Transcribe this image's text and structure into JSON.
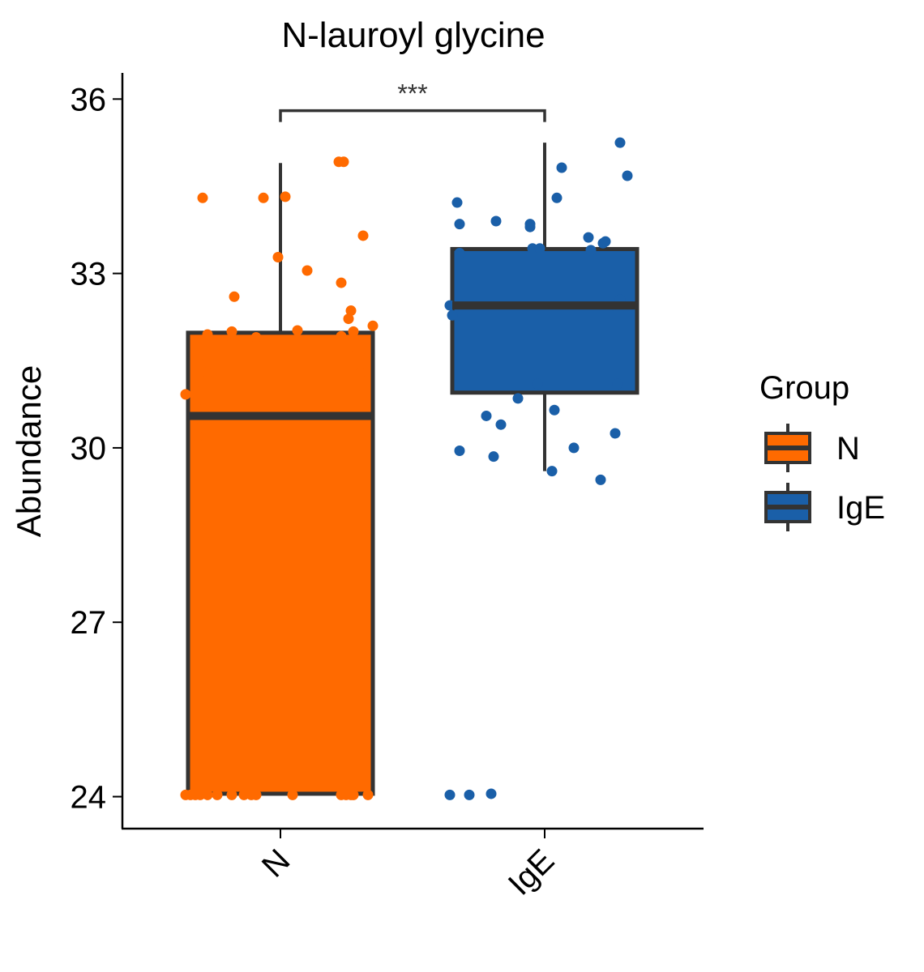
{
  "chart_data": {
    "type": "boxplot",
    "title": "N-lauroyl glycine",
    "xlabel": "",
    "ylabel": "Abundance",
    "ylim": [
      23.45,
      36.45
    ],
    "yticks": [
      24,
      27,
      30,
      33,
      36
    ],
    "ytick_labels": [
      "24",
      "27",
      "30",
      "33",
      "36"
    ],
    "categories": [
      "N",
      "IgE"
    ],
    "legend": {
      "title": "Group",
      "placement": "right",
      "entries": [
        "N",
        "IgE"
      ]
    },
    "significance": {
      "label": "***",
      "between": [
        "N",
        "IgE"
      ],
      "y": 35.8
    },
    "series": [
      {
        "name": "N",
        "color": "#FF6A00",
        "box": {
          "whisker_low": 24.05,
          "q1": 24.05,
          "median": 30.55,
          "q3": 31.98,
          "whisker_high": 34.9
        },
        "points": [
          [
            -0.39,
            24.03
          ],
          [
            -0.37,
            24.03
          ],
          [
            -0.35,
            24.03
          ],
          [
            -0.33,
            24.03
          ],
          [
            -0.3,
            24.03
          ],
          [
            -0.26,
            24.03
          ],
          [
            -0.2,
            24.03
          ],
          [
            -0.15,
            24.03
          ],
          [
            -0.12,
            24.03
          ],
          [
            -0.1,
            24.03
          ],
          [
            0.05,
            24.03
          ],
          [
            0.25,
            24.03
          ],
          [
            0.27,
            24.03
          ],
          [
            0.29,
            24.03
          ],
          [
            0.3,
            24.03
          ],
          [
            0.36,
            24.03
          ],
          [
            -0.39,
            30.92
          ],
          [
            -0.35,
            30.05
          ],
          [
            -0.34,
            30.2
          ],
          [
            -0.33,
            30.5
          ],
          [
            -0.32,
            31.85
          ],
          [
            -0.31,
            31.6
          ],
          [
            -0.3,
            31.3
          ],
          [
            -0.32,
            31.0
          ],
          [
            -0.31,
            30.7
          ],
          [
            -0.3,
            31.95
          ],
          [
            -0.2,
            31.8
          ],
          [
            -0.1,
            31.9
          ],
          [
            -0.2,
            32.0
          ],
          [
            0.07,
            32.02
          ],
          [
            0.25,
            31.92
          ],
          [
            0.28,
            31.85
          ],
          [
            0.3,
            31.75
          ],
          [
            0.31,
            31.6
          ],
          [
            0.32,
            31.45
          ],
          [
            0.33,
            31.3
          ],
          [
            0.31,
            30.55
          ],
          [
            0.34,
            30.55
          ],
          [
            0.3,
            32.0
          ],
          [
            0.28,
            32.22
          ],
          [
            0.29,
            32.36
          ],
          [
            0.38,
            32.1
          ],
          [
            -0.32,
            34.3
          ],
          [
            -0.19,
            32.6
          ],
          [
            -0.07,
            34.3
          ],
          [
            -0.01,
            33.28
          ],
          [
            0.02,
            34.32
          ],
          [
            0.11,
            33.05
          ],
          [
            0.24,
            34.92
          ],
          [
            0.25,
            32.84
          ],
          [
            0.26,
            34.92
          ],
          [
            0.34,
            33.65
          ]
        ]
      },
      {
        "name": "IgE",
        "color": "#1A5FA8",
        "box": {
          "whisker_low": 29.6,
          "q1": 30.95,
          "median": 32.45,
          "q3": 33.42,
          "whisker_high": 35.25
        },
        "points": [
          [
            -0.39,
            24.03
          ],
          [
            -0.31,
            24.03
          ],
          [
            -0.22,
            24.05
          ],
          [
            -0.35,
            29.95
          ],
          [
            -0.21,
            29.85
          ],
          [
            -0.24,
            30.55
          ],
          [
            -0.18,
            30.4
          ],
          [
            -0.11,
            30.85
          ],
          [
            0.03,
            29.6
          ],
          [
            0.04,
            30.65
          ],
          [
            0.12,
            30.0
          ],
          [
            0.23,
            29.45
          ],
          [
            0.29,
            30.25
          ],
          [
            -0.39,
            32.45
          ],
          [
            -0.38,
            32.28
          ],
          [
            -0.35,
            33.35
          ],
          [
            -0.35,
            33.85
          ],
          [
            -0.36,
            34.22
          ],
          [
            -0.2,
            33.9
          ],
          [
            -0.06,
            33.85
          ],
          [
            -0.06,
            33.8
          ],
          [
            -0.05,
            33.43
          ],
          [
            -0.02,
            33.43
          ],
          [
            0.05,
            34.3
          ],
          [
            0.07,
            34.82
          ],
          [
            0.18,
            33.62
          ],
          [
            0.19,
            33.4
          ],
          [
            0.24,
            33.52
          ],
          [
            0.25,
            33.55
          ],
          [
            0.28,
            32.45
          ],
          [
            0.31,
            35.25
          ],
          [
            0.34,
            34.68
          ],
          [
            0.31,
            32.55
          ],
          [
            0.3,
            31.1
          ],
          [
            -0.03,
            31.1
          ]
        ]
      }
    ]
  }
}
